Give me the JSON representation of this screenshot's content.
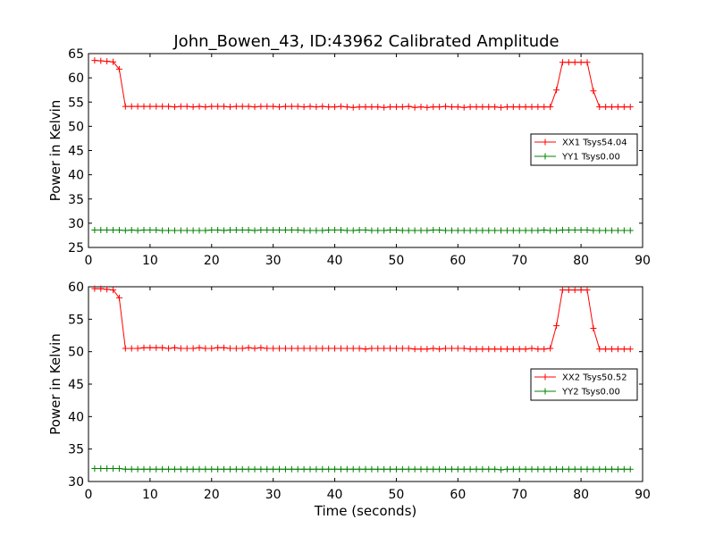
{
  "title": "John_Bowen_43, ID:43962 Calibrated Amplitude",
  "chart_data": [
    {
      "type": "line",
      "ylabel": "Power in Kelvin",
      "xlabel": "",
      "xlim": [
        0,
        90
      ],
      "ylim": [
        25,
        65
      ],
      "xticks": [
        0,
        10,
        20,
        30,
        40,
        50,
        60,
        70,
        80,
        90
      ],
      "yticks": [
        25,
        30,
        35,
        40,
        45,
        50,
        55,
        60,
        65
      ],
      "legend_position": "center-right",
      "series": [
        {
          "name": "XX1 Tsys54.04",
          "color": "#ff0000",
          "x": [
            1,
            2,
            3,
            4,
            5,
            6,
            7,
            8,
            9,
            10,
            11,
            12,
            13,
            14,
            15,
            16,
            17,
            18,
            19,
            20,
            21,
            22,
            23,
            24,
            25,
            26,
            27,
            28,
            29,
            30,
            31,
            32,
            33,
            34,
            35,
            36,
            37,
            38,
            39,
            40,
            41,
            42,
            43,
            44,
            45,
            46,
            47,
            48,
            49,
            50,
            51,
            52,
            53,
            54,
            55,
            56,
            57,
            58,
            59,
            60,
            61,
            62,
            63,
            64,
            65,
            66,
            67,
            68,
            69,
            70,
            71,
            72,
            73,
            74,
            75,
            76,
            77,
            78,
            79,
            80,
            81,
            82,
            83,
            84,
            85,
            86,
            87,
            88
          ],
          "y": [
            63.6,
            63.5,
            63.4,
            63.3,
            61.8,
            54.1,
            54.1,
            54.1,
            54.1,
            54.1,
            54.1,
            54.1,
            54.1,
            54.0,
            54.1,
            54.1,
            54.0,
            54.1,
            54.0,
            54.1,
            54.1,
            54.1,
            54.0,
            54.1,
            54.1,
            54.1,
            54.0,
            54.1,
            54.1,
            54.1,
            54.0,
            54.1,
            54.1,
            54.1,
            54.0,
            54.1,
            54.0,
            54.1,
            54.0,
            54.0,
            54.1,
            54.0,
            53.9,
            54.0,
            54.0,
            54.0,
            54.0,
            53.9,
            54.0,
            54.0,
            54.0,
            54.1,
            53.9,
            54.0,
            53.9,
            54.0,
            54.0,
            54.1,
            54.0,
            54.0,
            53.9,
            54.0,
            54.0,
            54.0,
            54.0,
            54.0,
            53.9,
            54.0,
            54.0,
            54.0,
            54.0,
            54.0,
            54.0,
            54.0,
            54.0,
            57.5,
            63.2,
            63.2,
            63.2,
            63.2,
            63.2,
            57.3,
            54.0,
            54.0,
            54.0,
            54.0,
            54.0,
            54.0
          ]
        },
        {
          "name": "YY1 Tsys0.00",
          "color": "#008000",
          "x": [
            1,
            2,
            3,
            4,
            5,
            6,
            7,
            8,
            9,
            10,
            11,
            12,
            13,
            14,
            15,
            16,
            17,
            18,
            19,
            20,
            21,
            22,
            23,
            24,
            25,
            26,
            27,
            28,
            29,
            30,
            31,
            32,
            33,
            34,
            35,
            36,
            37,
            38,
            39,
            40,
            41,
            42,
            43,
            44,
            45,
            46,
            47,
            48,
            49,
            50,
            51,
            52,
            53,
            54,
            55,
            56,
            57,
            58,
            59,
            60,
            61,
            62,
            63,
            64,
            65,
            66,
            67,
            68,
            69,
            70,
            71,
            72,
            73,
            74,
            75,
            76,
            77,
            78,
            79,
            80,
            81,
            82,
            83,
            84,
            85,
            86,
            87,
            88
          ],
          "y": [
            28.6,
            28.6,
            28.6,
            28.6,
            28.6,
            28.5,
            28.6,
            28.5,
            28.6,
            28.6,
            28.6,
            28.5,
            28.5,
            28.5,
            28.5,
            28.5,
            28.5,
            28.5,
            28.5,
            28.6,
            28.6,
            28.5,
            28.6,
            28.6,
            28.6,
            28.6,
            28.5,
            28.6,
            28.6,
            28.6,
            28.6,
            28.6,
            28.6,
            28.6,
            28.5,
            28.5,
            28.5,
            28.5,
            28.6,
            28.6,
            28.6,
            28.5,
            28.5,
            28.6,
            28.6,
            28.5,
            28.5,
            28.5,
            28.6,
            28.6,
            28.5,
            28.5,
            28.5,
            28.5,
            28.5,
            28.6,
            28.6,
            28.5,
            28.5,
            28.5,
            28.5,
            28.5,
            28.5,
            28.5,
            28.5,
            28.5,
            28.5,
            28.5,
            28.5,
            28.5,
            28.5,
            28.5,
            28.5,
            28.6,
            28.5,
            28.5,
            28.6,
            28.6,
            28.6,
            28.6,
            28.6,
            28.5,
            28.5,
            28.5,
            28.5,
            28.5,
            28.5,
            28.5
          ]
        }
      ]
    },
    {
      "type": "line",
      "ylabel": "Power in Kelvin",
      "xlabel": "Time (seconds)",
      "xlim": [
        0,
        90
      ],
      "ylim": [
        30,
        60
      ],
      "xticks": [
        0,
        10,
        20,
        30,
        40,
        50,
        60,
        70,
        80,
        90
      ],
      "yticks": [
        30,
        35,
        40,
        45,
        50,
        55,
        60
      ],
      "legend_position": "center-right",
      "series": [
        {
          "name": "XX2 Tsys50.52",
          "color": "#ff0000",
          "x": [
            1,
            2,
            3,
            4,
            5,
            6,
            7,
            8,
            9,
            10,
            11,
            12,
            13,
            14,
            15,
            16,
            17,
            18,
            19,
            20,
            21,
            22,
            23,
            24,
            25,
            26,
            27,
            28,
            29,
            30,
            31,
            32,
            33,
            34,
            35,
            36,
            37,
            38,
            39,
            40,
            41,
            42,
            43,
            44,
            45,
            46,
            47,
            48,
            49,
            50,
            51,
            52,
            53,
            54,
            55,
            56,
            57,
            58,
            59,
            60,
            61,
            62,
            63,
            64,
            65,
            66,
            67,
            68,
            69,
            70,
            71,
            72,
            73,
            74,
            75,
            76,
            77,
            78,
            79,
            80,
            81,
            82,
            83,
            84,
            85,
            86,
            87,
            88
          ],
          "y": [
            59.7,
            59.7,
            59.6,
            59.5,
            58.3,
            50.5,
            50.5,
            50.5,
            50.6,
            50.6,
            50.6,
            50.6,
            50.5,
            50.6,
            50.5,
            50.5,
            50.5,
            50.6,
            50.5,
            50.5,
            50.6,
            50.6,
            50.5,
            50.5,
            50.5,
            50.6,
            50.5,
            50.6,
            50.5,
            50.5,
            50.5,
            50.5,
            50.5,
            50.5,
            50.5,
            50.5,
            50.5,
            50.5,
            50.5,
            50.5,
            50.5,
            50.5,
            50.5,
            50.5,
            50.4,
            50.5,
            50.5,
            50.5,
            50.5,
            50.5,
            50.5,
            50.5,
            50.4,
            50.4,
            50.4,
            50.5,
            50.4,
            50.5,
            50.5,
            50.5,
            50.5,
            50.4,
            50.4,
            50.4,
            50.4,
            50.4,
            50.4,
            50.4,
            50.4,
            50.4,
            50.4,
            50.5,
            50.4,
            50.4,
            50.5,
            54.0,
            59.5,
            59.5,
            59.5,
            59.5,
            59.5,
            53.6,
            50.4,
            50.4,
            50.4,
            50.4,
            50.4,
            50.4
          ]
        },
        {
          "name": "YY2 Tsys0.00",
          "color": "#008000",
          "x": [
            1,
            2,
            3,
            4,
            5,
            6,
            7,
            8,
            9,
            10,
            11,
            12,
            13,
            14,
            15,
            16,
            17,
            18,
            19,
            20,
            21,
            22,
            23,
            24,
            25,
            26,
            27,
            28,
            29,
            30,
            31,
            32,
            33,
            34,
            35,
            36,
            37,
            38,
            39,
            40,
            41,
            42,
            43,
            44,
            45,
            46,
            47,
            48,
            49,
            50,
            51,
            52,
            53,
            54,
            55,
            56,
            57,
            58,
            59,
            60,
            61,
            62,
            63,
            64,
            65,
            66,
            67,
            68,
            69,
            70,
            71,
            72,
            73,
            74,
            75,
            76,
            77,
            78,
            79,
            80,
            81,
            82,
            83,
            84,
            85,
            86,
            87,
            88
          ],
          "y": [
            32.0,
            32.0,
            32.0,
            32.0,
            32.0,
            31.9,
            31.9,
            31.9,
            31.9,
            31.9,
            31.9,
            31.9,
            31.9,
            31.9,
            31.9,
            31.9,
            31.9,
            31.9,
            31.9,
            31.9,
            31.9,
            31.9,
            31.9,
            31.9,
            31.9,
            31.9,
            31.9,
            31.9,
            31.9,
            31.9,
            31.9,
            31.9,
            31.9,
            31.9,
            31.9,
            31.9,
            31.9,
            31.9,
            31.9,
            31.9,
            31.9,
            31.9,
            31.9,
            31.9,
            31.9,
            31.9,
            31.9,
            31.9,
            31.9,
            31.9,
            31.9,
            31.9,
            31.9,
            31.9,
            31.9,
            31.9,
            31.9,
            31.9,
            31.9,
            31.9,
            31.9,
            31.9,
            31.9,
            31.9,
            31.9,
            31.9,
            31.8,
            31.9,
            31.9,
            31.9,
            31.9,
            31.9,
            31.9,
            31.9,
            31.9,
            31.9,
            31.9,
            31.9,
            31.9,
            31.9,
            31.9,
            31.9,
            31.9,
            31.9,
            31.9,
            31.9,
            31.9,
            31.9
          ]
        }
      ]
    }
  ]
}
